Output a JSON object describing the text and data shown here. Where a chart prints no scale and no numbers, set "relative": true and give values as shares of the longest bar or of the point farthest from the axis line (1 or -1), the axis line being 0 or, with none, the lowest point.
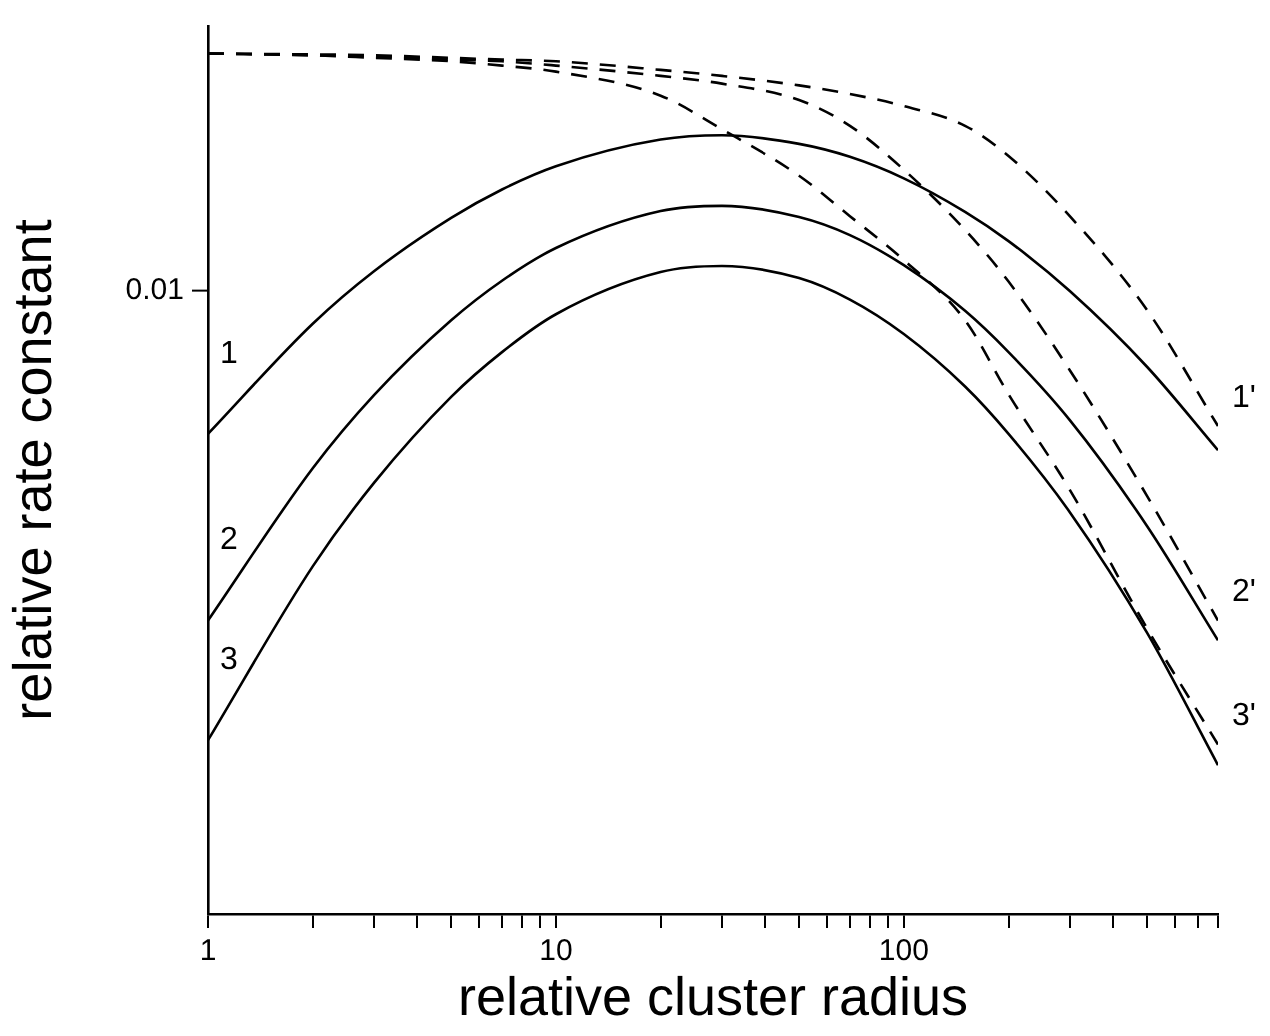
{
  "chart_data": {
    "type": "line",
    "xlabel": "relative cluster radius",
    "ylabel": "relative rate constant",
    "log": "x",
    "grid": false,
    "legend": false,
    "marker": "none",
    "relative": true,
    "annotations": [
      "0.01"
    ],
    "xlim": [
      1,
      800
    ],
    "xticks": [
      1,
      {
        "value": 2,
        "label": null
      },
      {
        "value": 3,
        "label": null
      },
      {
        "value": 4,
        "label": null
      },
      {
        "value": 5,
        "label": null
      },
      {
        "value": 6,
        "label": null
      },
      {
        "value": 7,
        "label": null
      },
      {
        "value": 8,
        "label": null
      },
      {
        "value": 9,
        "label": null
      },
      10,
      {
        "value": 20,
        "label": null
      },
      {
        "value": 30,
        "label": null
      },
      {
        "value": 40,
        "label": null
      },
      {
        "value": 50,
        "label": null
      },
      {
        "value": 60,
        "label": null
      },
      {
        "value": 70,
        "label": null
      },
      {
        "value": 80,
        "label": null
      },
      {
        "value": 90,
        "label": null
      },
      100,
      {
        "value": 200,
        "label": null
      },
      {
        "value": 300,
        "label": null
      },
      {
        "value": 400,
        "label": null
      },
      {
        "value": 500,
        "label": null
      },
      {
        "value": 600,
        "label": null
      },
      {
        "value": 700,
        "label": null
      },
      {
        "value": 800,
        "label": null
      }
    ],
    "x": [
      1,
      2,
      3,
      5,
      7,
      10,
      20,
      30,
      50,
      70,
      100,
      150,
      200,
      300,
      500,
      800
    ],
    "series": [
      {
        "name": "1",
        "color": "#000000",
        "line_style": "solid",
        "values": [
          0.558,
          0.686,
          0.747,
          0.809,
          0.842,
          0.869,
          0.9,
          0.905,
          0.895,
          0.88,
          0.855,
          0.816,
          0.782,
          0.724,
          0.636,
          0.539
        ]
      },
      {
        "name": "2",
        "color": "#000000",
        "line_style": "solid",
        "values": [
          0.341,
          0.518,
          0.603,
          0.69,
          0.736,
          0.774,
          0.817,
          0.823,
          0.81,
          0.789,
          0.754,
          0.701,
          0.653,
          0.574,
          0.451,
          0.318
        ]
      },
      {
        "name": "3",
        "color": "#000000",
        "line_style": "solid",
        "values": [
          0.202,
          0.404,
          0.501,
          0.601,
          0.653,
          0.697,
          0.746,
          0.753,
          0.739,
          0.714,
          0.674,
          0.613,
          0.558,
          0.467,
          0.327,
          0.173
        ]
      },
      {
        "name": "1'",
        "color": "#000000",
        "line_style": "dashed",
        "values": [
          1,
          0.999,
          0.998,
          0.995,
          0.993,
          0.991,
          0.981,
          0.974,
          0.963,
          0.953,
          0.939,
          0.916,
          0.881,
          0.811,
          0.702,
          0.567
        ]
      },
      {
        "name": "2'",
        "color": "#000000",
        "line_style": "dashed",
        "values": [
          1,
          0.998,
          0.997,
          0.993,
          0.991,
          0.986,
          0.974,
          0.965,
          0.946,
          0.916,
          0.865,
          0.795,
          0.735,
          0.632,
          0.486,
          0.341
        ]
      },
      {
        "name": "3'",
        "color": "#000000",
        "line_style": "dashed",
        "values": [
          1,
          0.998,
          0.995,
          0.991,
          0.986,
          0.979,
          0.951,
          0.912,
          0.858,
          0.811,
          0.76,
          0.69,
          0.604,
          0.493,
          0.332,
          0.197
        ]
      }
    ]
  }
}
